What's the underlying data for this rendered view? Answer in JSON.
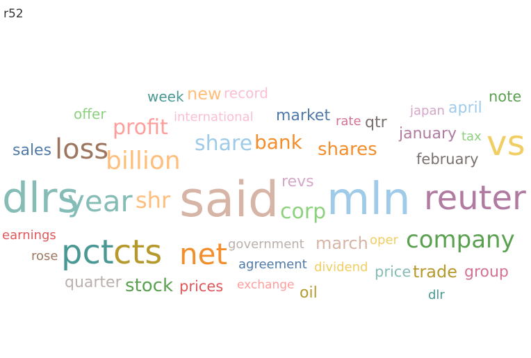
{
  "title": "r52",
  "chart_data": {
    "type": "wordcloud",
    "words": [
      {
        "text": "said",
        "color": "#d7b5a6",
        "weight": 100
      },
      {
        "text": "mln",
        "color": "#a0cbe8",
        "weight": 92
      },
      {
        "text": "dlrs",
        "color": "#86bcb6",
        "weight": 88
      },
      {
        "text": "vs",
        "color": "#f1ce63",
        "weight": 80
      },
      {
        "text": "reuter",
        "color": "#b07aa1",
        "weight": 76
      },
      {
        "text": "year",
        "color": "#86bcb6",
        "weight": 66
      },
      {
        "text": "pct",
        "color": "#499894",
        "weight": 66
      },
      {
        "text": "cts",
        "color": "#b6992d",
        "weight": 66
      },
      {
        "text": "net",
        "color": "#f28e2b",
        "weight": 62
      },
      {
        "text": "loss",
        "color": "#9d7660",
        "weight": 58
      },
      {
        "text": "company",
        "color": "#59a14f",
        "weight": 52
      },
      {
        "text": "billion",
        "color": "#ffbe7d",
        "weight": 50
      },
      {
        "text": "corp",
        "color": "#8cd17d",
        "weight": 44
      },
      {
        "text": "shr",
        "color": "#ffbe7d",
        "weight": 44
      },
      {
        "text": "profit",
        "color": "#ff9d9a",
        "weight": 42
      },
      {
        "text": "share",
        "color": "#a0cbe8",
        "weight": 40
      },
      {
        "text": "bank",
        "color": "#f28e2b",
        "weight": 38
      },
      {
        "text": "stock",
        "color": "#59a14f",
        "weight": 34
      },
      {
        "text": "shares",
        "color": "#f28e2b",
        "weight": 32
      },
      {
        "text": "march",
        "color": "#d7b5a6",
        "weight": 30
      },
      {
        "text": "trade",
        "color": "#b6992d",
        "weight": 30
      },
      {
        "text": "new",
        "color": "#ffbe7d",
        "weight": 30
      },
      {
        "text": "revs",
        "color": "#d4a6c8",
        "weight": 28
      },
      {
        "text": "january",
        "color": "#b07aa1",
        "weight": 26
      },
      {
        "text": "market",
        "color": "#4e79a7",
        "weight": 26
      },
      {
        "text": "qtr",
        "color": "#79706e",
        "weight": 26
      },
      {
        "text": "sales",
        "color": "#4e79a7",
        "weight": 26
      },
      {
        "text": "april",
        "color": "#a0cbe8",
        "weight": 26
      },
      {
        "text": "quarter",
        "color": "#bab0ac",
        "weight": 26
      },
      {
        "text": "group",
        "color": "#d37295",
        "weight": 26
      },
      {
        "text": "oil",
        "color": "#b6992d",
        "weight": 26
      },
      {
        "text": "prices",
        "color": "#e15759",
        "weight": 24
      },
      {
        "text": "price",
        "color": "#86bcb6",
        "weight": 24
      },
      {
        "text": "february",
        "color": "#79706e",
        "weight": 24
      },
      {
        "text": "note",
        "color": "#59a14f",
        "weight": 24
      },
      {
        "text": "record",
        "color": "#fabfd2",
        "weight": 22
      },
      {
        "text": "week",
        "color": "#499894",
        "weight": 22
      },
      {
        "text": "offer",
        "color": "#8cd17d",
        "weight": 22
      },
      {
        "text": "government",
        "color": "#bab0ac",
        "weight": 22
      },
      {
        "text": "agreement",
        "color": "#4e79a7",
        "weight": 22
      },
      {
        "text": "international",
        "color": "#fabfd2",
        "weight": 20
      },
      {
        "text": "rate",
        "color": "#d37295",
        "weight": 20
      },
      {
        "text": "japan",
        "color": "#d4a6c8",
        "weight": 20
      },
      {
        "text": "tax",
        "color": "#8cd17d",
        "weight": 20
      },
      {
        "text": "earnings",
        "color": "#e15759",
        "weight": 20
      },
      {
        "text": "rose",
        "color": "#9d7660",
        "weight": 20
      },
      {
        "text": "oper",
        "color": "#f1ce63",
        "weight": 20
      },
      {
        "text": "dividend",
        "color": "#f1ce63",
        "weight": 20
      },
      {
        "text": "exchange",
        "color": "#ff9d9a",
        "weight": 20
      },
      {
        "text": "dlr",
        "color": "#499894",
        "weight": 20
      }
    ]
  }
}
